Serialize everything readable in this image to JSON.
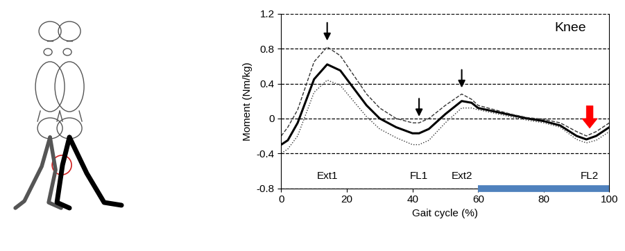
{
  "chart_data": {
    "type": "line",
    "title": "Knee",
    "x_label": "Gait cycle (%)",
    "y_label": "Moment (Nm/kg)",
    "x": [
      0,
      2,
      5,
      10,
      14,
      18,
      22,
      26,
      30,
      35,
      40,
      42,
      45,
      50,
      55,
      58,
      60,
      65,
      70,
      75,
      80,
      85,
      90,
      93,
      96,
      100
    ],
    "series": [
      {
        "color": "#000000",
        "line_style": "solid",
        "values": [
          -0.3,
          -0.25,
          -0.05,
          0.45,
          0.62,
          0.55,
          0.35,
          0.15,
          0.0,
          -0.1,
          -0.17,
          -0.17,
          -0.12,
          0.05,
          0.2,
          0.18,
          0.12,
          0.08,
          0.04,
          0.0,
          -0.03,
          -0.08,
          -0.2,
          -0.24,
          -0.2,
          -0.1
        ]
      },
      {
        "color": "#333333",
        "line_style": "dashed",
        "values": [
          -0.2,
          -0.1,
          0.1,
          0.65,
          0.82,
          0.72,
          0.5,
          0.28,
          0.12,
          0.0,
          -0.05,
          -0.05,
          0.0,
          0.15,
          0.28,
          0.22,
          0.15,
          0.1,
          0.05,
          0.01,
          -0.01,
          -0.05,
          -0.15,
          -0.2,
          -0.15,
          -0.05
        ]
      },
      {
        "color": "#333333",
        "line_style": "dotted",
        "values": [
          -0.4,
          -0.35,
          -0.2,
          0.3,
          0.44,
          0.38,
          0.2,
          0.02,
          -0.12,
          -0.22,
          -0.3,
          -0.3,
          -0.25,
          -0.05,
          0.12,
          0.12,
          0.1,
          0.06,
          0.02,
          -0.02,
          -0.05,
          -0.1,
          -0.24,
          -0.28,
          -0.25,
          -0.15
        ]
      }
    ],
    "annotations": [
      {
        "text": "Ext1",
        "x": 14,
        "color": "#000000"
      },
      {
        "text": "FL1",
        "x": 42,
        "color": "#000000"
      },
      {
        "text": "Ext2",
        "x": 55,
        "color": "#000000"
      },
      {
        "text": "FL2",
        "x": 94,
        "color": "#ff0000"
      }
    ],
    "highlight": {
      "range": [
        60,
        100
      ],
      "color": "#4f81bd"
    },
    "xlim": [
      0,
      100
    ],
    "xticks": [
      0,
      20,
      40,
      60,
      80,
      100
    ],
    "ylim": [
      -0.8,
      1.2
    ],
    "yticks": [
      -0.8,
      -0.4,
      0,
      0.4,
      0.8,
      1.2
    ],
    "grid": true
  }
}
